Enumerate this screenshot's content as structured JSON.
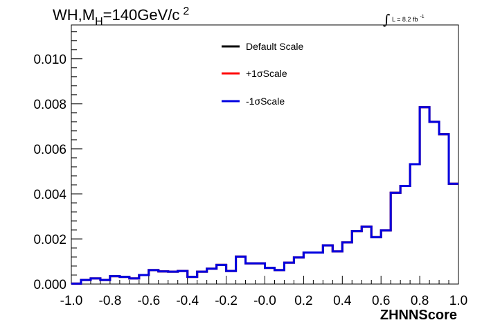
{
  "chart_data": {
    "type": "histogram",
    "title_main": "WH,M",
    "title_sub": "H",
    "title_rest": "=140GeV/c",
    "title_sup": "2",
    "lumi_text": "L = 8.2 fb",
    "lumi_sup": "-1",
    "xlabel": "ZHNNScore",
    "xlim": [
      -1.0,
      1.0
    ],
    "ylim": [
      0.0,
      0.0115
    ],
    "x_ticks": [
      "-1.0",
      "-0.8",
      "-0.6",
      "-0.4",
      "-0.2",
      "-0.0",
      "0.2",
      "0.4",
      "0.6",
      "0.8",
      "1.0"
    ],
    "x_tick_values": [
      -1.0,
      -0.8,
      -0.6,
      -0.4,
      -0.2,
      0.0,
      0.2,
      0.4,
      0.6,
      0.8,
      1.0
    ],
    "y_ticks": [
      "0.000",
      "0.002",
      "0.004",
      "0.006",
      "0.008",
      "0.010"
    ],
    "y_tick_values": [
      0.0,
      0.002,
      0.004,
      0.006,
      0.008,
      0.01
    ],
    "bin_edges_start": -1.0,
    "bin_width": 0.05,
    "series": [
      {
        "name": "Default Scale",
        "color": "#000000",
        "values": [
          2e-05,
          0.00018,
          0.00025,
          0.00018,
          0.00035,
          0.00032,
          0.00025,
          0.0004,
          0.00062,
          0.00056,
          0.00055,
          0.00058,
          0.00032,
          0.00055,
          0.00068,
          0.00085,
          0.00058,
          0.00122,
          0.00092,
          0.00092,
          0.00072,
          0.00062,
          0.00095,
          0.00118,
          0.0014,
          0.0014,
          0.00172,
          0.00145,
          0.00185,
          0.00235,
          0.00255,
          0.00208,
          0.00238,
          0.00405,
          0.00435,
          0.00532,
          0.00785,
          0.0072,
          0.00665,
          0.00445
        ]
      },
      {
        "name": "+1σScale",
        "color": "#ff0000",
        "values": [
          2e-05,
          0.00018,
          0.00025,
          0.00018,
          0.00035,
          0.00032,
          0.00025,
          0.0004,
          0.00062,
          0.00056,
          0.00055,
          0.00058,
          0.00032,
          0.00055,
          0.00068,
          0.00085,
          0.00058,
          0.00122,
          0.00092,
          0.00092,
          0.00072,
          0.00062,
          0.00095,
          0.00118,
          0.0014,
          0.0014,
          0.00172,
          0.00145,
          0.00185,
          0.00235,
          0.00255,
          0.00208,
          0.00238,
          0.00405,
          0.00435,
          0.00532,
          0.00785,
          0.0072,
          0.00665,
          0.00445
        ]
      },
      {
        "name": "-1σScale",
        "color": "#0000e0",
        "values": [
          2e-05,
          0.00018,
          0.00025,
          0.00018,
          0.00035,
          0.00032,
          0.00025,
          0.0004,
          0.00062,
          0.00056,
          0.00055,
          0.00058,
          0.00032,
          0.00055,
          0.00068,
          0.00085,
          0.00058,
          0.00122,
          0.00092,
          0.00092,
          0.00072,
          0.00062,
          0.00095,
          0.00118,
          0.0014,
          0.0014,
          0.00172,
          0.00145,
          0.00185,
          0.00235,
          0.00255,
          0.00208,
          0.00238,
          0.00405,
          0.00435,
          0.00532,
          0.00785,
          0.0072,
          0.00665,
          0.00445
        ]
      }
    ],
    "legend_position": "top-center"
  }
}
